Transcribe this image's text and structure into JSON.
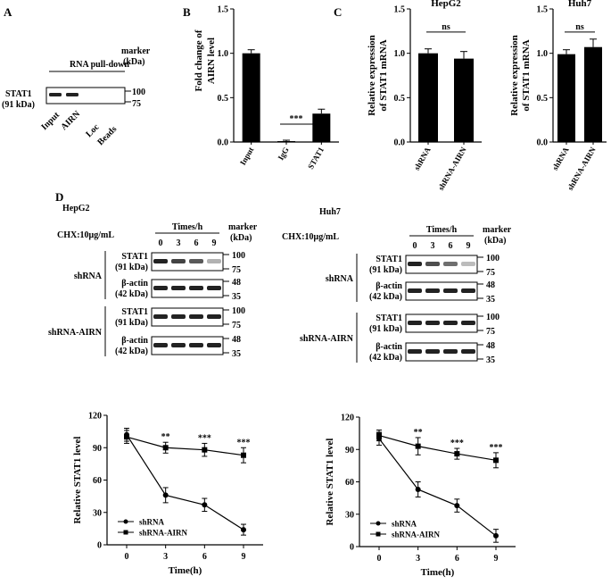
{
  "panels": {
    "A": "A",
    "B": "B",
    "C": "C",
    "D": "D"
  },
  "panelA": {
    "header": "RNA pull-down",
    "marker_label": [
      "marker",
      "(kDa)"
    ],
    "protein": [
      "STAT1",
      "(91 kDa)"
    ],
    "markers": [
      "100",
      "75"
    ],
    "lanes": [
      "Input",
      "AIRN",
      "Loc",
      "Beads"
    ]
  },
  "panelB": {
    "ylabel": [
      "Fold change of",
      "AIRN level"
    ],
    "sig": "***"
  },
  "panelC": {
    "sig": "ns"
  },
  "panelD": {
    "left_title": "HepG2",
    "right_title": "Huh7",
    "cond": "CHX:10μg/mL",
    "times_label": "Times/h",
    "times": [
      "0",
      "3",
      "6",
      "9"
    ],
    "marker_label": [
      "marker",
      "(kDa)"
    ],
    "stat1": [
      "STAT1",
      "(91 kDa)"
    ],
    "actin": [
      "β-actin",
      "(42 kDa)"
    ],
    "groups": [
      "shRNA",
      "shRNA-AIRN"
    ],
    "stat1_markers": [
      "100",
      "75"
    ],
    "actin_markers": [
      "48",
      "35"
    ]
  },
  "chart_data": [
    {
      "type": "bar",
      "panel": "B",
      "categories": [
        "Input",
        "IgG",
        "STAT1"
      ],
      "values": [
        1.0,
        0.01,
        0.32
      ],
      "errors": [
        0.04,
        0.01,
        0.05
      ],
      "ylabel": "Fold change of AIRN level",
      "ylim": [
        0,
        1.5
      ],
      "yticks": [
        "0.0",
        "0.5",
        "1.0",
        "1.5"
      ]
    },
    {
      "type": "bar",
      "panel": "C",
      "title": "HepG2",
      "categories": [
        "shRNA",
        "shRNA-AIRN"
      ],
      "values": [
        1.0,
        0.94
      ],
      "errors": [
        0.05,
        0.08
      ],
      "ylabel": "Relative expression of STAT1 mRNA",
      "ylim": [
        0,
        1.5
      ],
      "yticks": [
        "0.0",
        "0.5",
        "1.0",
        "1.5"
      ]
    },
    {
      "type": "bar",
      "panel": "C",
      "title": "Huh7",
      "categories": [
        "shRNA",
        "shRNA-AIRN"
      ],
      "values": [
        0.99,
        1.07
      ],
      "errors": [
        0.05,
        0.09
      ],
      "ylabel": "Relative expression of STAT1 mRNA",
      "ylim": [
        0,
        1.5
      ],
      "yticks": [
        "0.0",
        "0.5",
        "1.0",
        "1.5"
      ]
    },
    {
      "type": "line",
      "panel": "D",
      "cell": "HepG2",
      "x": [
        0,
        3,
        6,
        9
      ],
      "xticks": [
        "0",
        "3",
        "6",
        "9"
      ],
      "xlabel": "Time(h)",
      "ylabel": "Relative STAT1 level",
      "ylim": [
        0,
        120
      ],
      "yticks": [
        "0",
        "30",
        "60",
        "90",
        "120"
      ],
      "legend": "bottom-left",
      "series": [
        {
          "name": "shRNA",
          "marker": "circle",
          "values": [
            102,
            46,
            37,
            14
          ],
          "errors": [
            6,
            7,
            6,
            5
          ]
        },
        {
          "name": "shRNA-AIRN",
          "marker": "square",
          "values": [
            100,
            90,
            88,
            83
          ],
          "errors": [
            6,
            5,
            6,
            7
          ]
        }
      ],
      "annotations": [
        "",
        "**",
        "***",
        "***"
      ]
    },
    {
      "type": "line",
      "panel": "D",
      "cell": "Huh7",
      "x": [
        0,
        3,
        6,
        9
      ],
      "xticks": [
        "0",
        "3",
        "6",
        "9"
      ],
      "xlabel": "Time(h)",
      "ylabel": "Relative STAT1 level",
      "ylim": [
        0,
        120
      ],
      "yticks": [
        "0",
        "30",
        "60",
        "90",
        "120"
      ],
      "legend": "bottom-left",
      "series": [
        {
          "name": "shRNA",
          "marker": "circle",
          "values": [
            100,
            53,
            38,
            10
          ],
          "errors": [
            6,
            7,
            6,
            6
          ]
        },
        {
          "name": "shRNA-AIRN",
          "marker": "square",
          "values": [
            103,
            93,
            86,
            80
          ],
          "errors": [
            5,
            8,
            5,
            7
          ]
        }
      ],
      "annotations": [
        "",
        "**",
        "***",
        "***"
      ]
    }
  ]
}
